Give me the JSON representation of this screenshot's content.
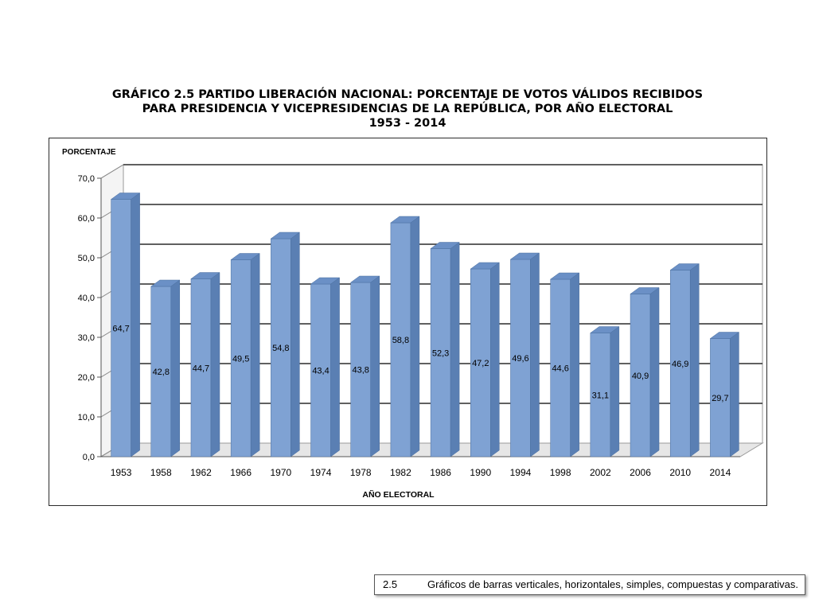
{
  "title": {
    "line1": "GRÁFICO 2.5 PARTIDO LIBERACIÓN NACIONAL: PORCENTAJE DE VOTOS VÁLIDOS RECIBIDOS",
    "line2": "PARA PRESIDENCIA Y VICEPRESIDENCIAS DE LA REPÚBLICA, POR AÑO ELECTORAL",
    "line3": "1953 - 2014"
  },
  "footer": {
    "number": "2.5",
    "text": "Gráficos de barras verticales, horizontales, simples, compuestas y comparativas."
  },
  "colors": {
    "bar_front": "#7fa2d3",
    "bar_side": "#5a7fb3",
    "bar_top": "#6b90c6",
    "grid": "#2b2b2b",
    "axis": "#555555"
  },
  "chart_data": {
    "type": "bar",
    "ylabel": "PORCENTAJE",
    "xlabel": "AÑO ELECTORAL",
    "categories": [
      "1953",
      "1958",
      "1962",
      "1966",
      "1970",
      "1974",
      "1978",
      "1982",
      "1986",
      "1990",
      "1994",
      "1998",
      "2002",
      "2006",
      "2010",
      "2014"
    ],
    "values": [
      64.7,
      42.8,
      44.7,
      49.5,
      54.8,
      43.4,
      43.8,
      58.8,
      52.3,
      47.2,
      49.6,
      44.6,
      31.1,
      40.9,
      46.9,
      29.7
    ],
    "data_labels": [
      "64,7",
      "42,8",
      "44,7",
      "49,5",
      "54,8",
      "43,4",
      "43,8",
      "58,8",
      "52,3",
      "47,2",
      "49,6",
      "44,6",
      "31,1",
      "40,9",
      "46,9",
      "29,7"
    ],
    "ylim": [
      0,
      70
    ],
    "yticks": [
      0,
      10,
      20,
      30,
      40,
      50,
      60,
      70
    ],
    "ytick_labels": [
      "0,0",
      "10,0",
      "20,0",
      "30,0",
      "40,0",
      "50,0",
      "60,0",
      "70,0"
    ],
    "grid": true,
    "style": "3d"
  }
}
